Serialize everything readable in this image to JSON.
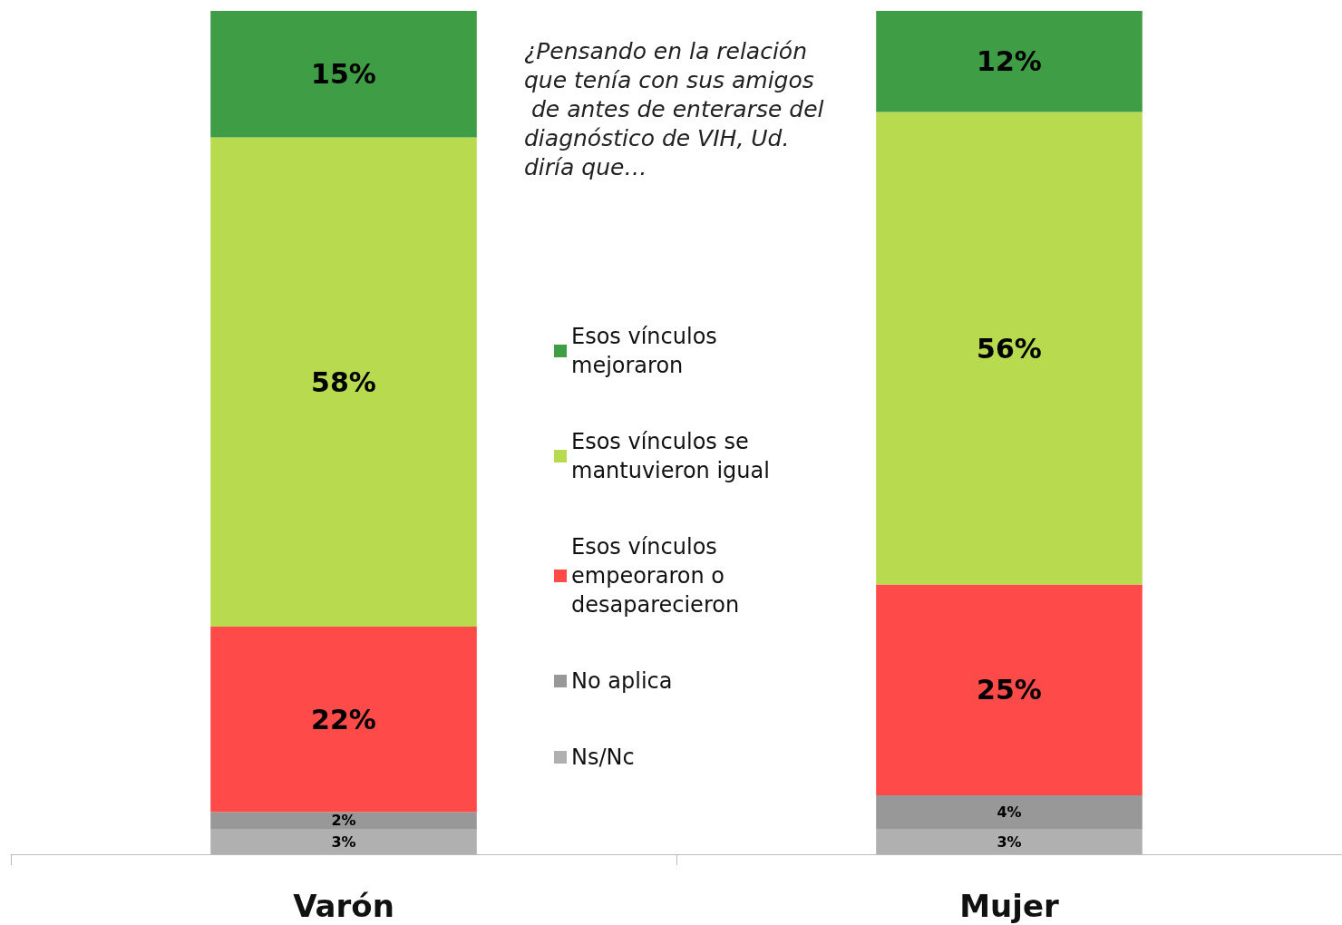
{
  "chart_data": {
    "type": "bar",
    "stacked": true,
    "categories": [
      "Varón",
      "Mujer"
    ],
    "series": [
      {
        "name": "Ns/Nc",
        "color": "#b0b0b0",
        "values": [
          3,
          3
        ],
        "value_labels": [
          "3%",
          "3%"
        ]
      },
      {
        "name": "No aplica",
        "color": "#989898",
        "values": [
          2,
          4
        ],
        "value_labels": [
          "2%",
          "4%"
        ]
      },
      {
        "name": "Esos vínculos empeoraron o desaparecieron",
        "color": "#ff4a4a",
        "values": [
          22,
          25
        ],
        "value_labels": [
          "22%",
          "25%"
        ]
      },
      {
        "name": "Esos vínculos se mantuvieron igual",
        "color": "#b8da4e",
        "values": [
          58,
          56
        ],
        "value_labels": [
          "58%",
          "56%"
        ]
      },
      {
        "name": "Esos vínculos mejoraron",
        "color": "#3f9d45",
        "values": [
          15,
          12
        ],
        "value_labels": [
          "15%",
          "12%"
        ]
      }
    ],
    "legend": "center",
    "annotations": [
      "¿Pensando en la relación que tenía con sus amigos de antes de enterarse del diagnóstico de VIH, Ud. diría que…"
    ]
  }
}
